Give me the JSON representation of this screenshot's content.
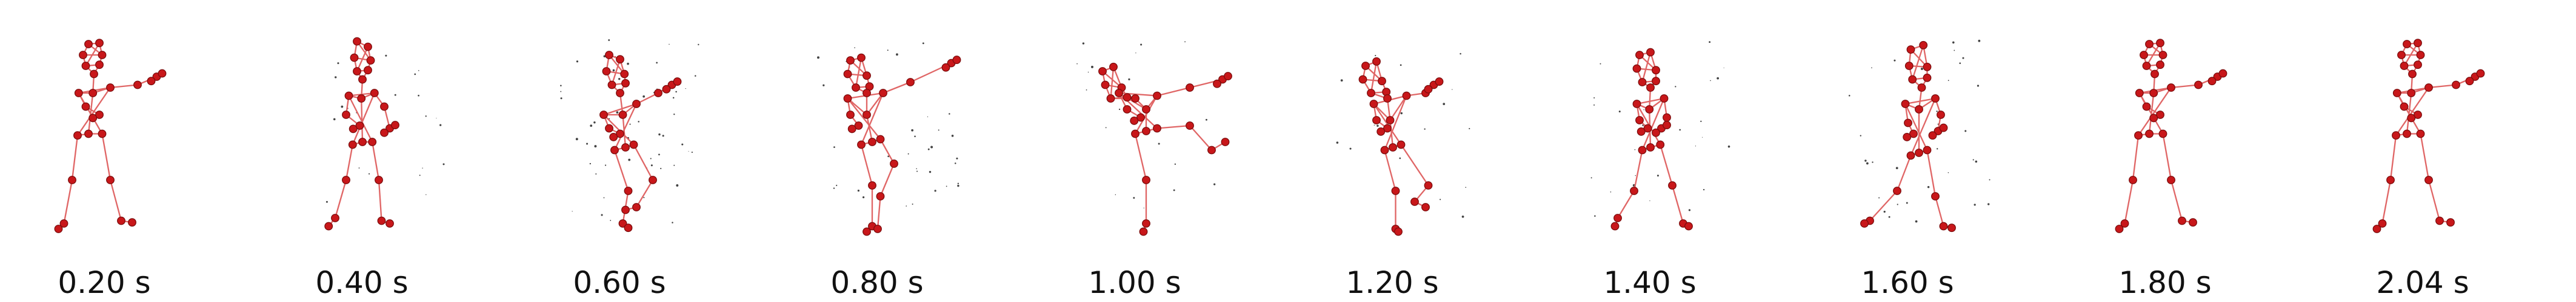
{
  "figure": {
    "frames": [
      {
        "time_label": "0.20 s",
        "pose": "guard",
        "noise": 0.0
      },
      {
        "time_label": "0.40 s",
        "pose": "step",
        "noise": 0.35
      },
      {
        "time_label": "0.60 s",
        "pose": "knee",
        "noise": 0.9
      },
      {
        "time_label": "0.80 s",
        "pose": "punch_up",
        "noise": 0.6
      },
      {
        "time_label": "1.00 s",
        "pose": "kick",
        "noise": 0.35
      },
      {
        "time_label": "1.20 s",
        "pose": "knee2",
        "noise": 0.3
      },
      {
        "time_label": "1.40 s",
        "pose": "lunge",
        "noise": 0.45
      },
      {
        "time_label": "1.60 s",
        "pose": "lunge2",
        "noise": 0.6
      },
      {
        "time_label": "1.80 s",
        "pose": "guard",
        "noise": 0.0
      },
      {
        "time_label": "2.04 s",
        "pose": "guard",
        "noise": 0.0
      }
    ],
    "colors": {
      "bone": "#e06666",
      "joint": "#c8171a",
      "speck": "#444444"
    }
  }
}
